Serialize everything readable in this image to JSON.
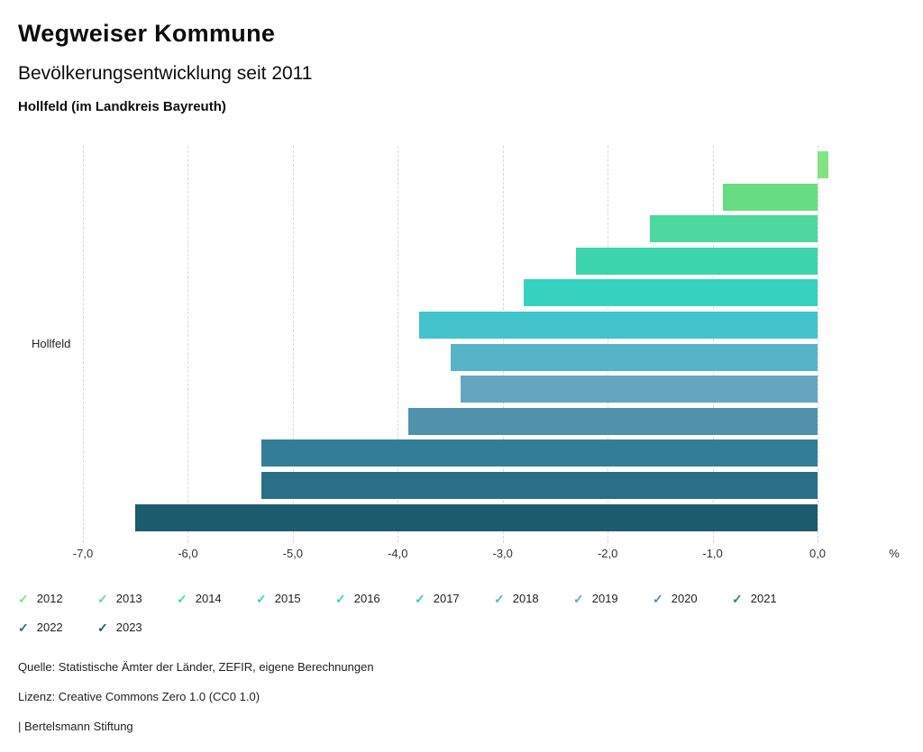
{
  "header": {
    "title": "Wegweiser Kommune",
    "subtitle": "Bevölkerungsentwicklung seit 2011",
    "location": "Hollfeld (im Landkreis Bayreuth)"
  },
  "chart_data": {
    "type": "bar",
    "orientation": "horizontal",
    "title": "Bevölkerungsentwicklung seit 2011",
    "group_label": "Hollfeld",
    "xlabel": "%",
    "xlim": [
      -7.0,
      0.7
    ],
    "grid": "dashed-vertical",
    "legend_position": "bottom",
    "x_ticks": [
      "-7,0",
      "-6,0",
      "-5,0",
      "-4,0",
      "-3,0",
      "-2,0",
      "-1,0",
      "0,0"
    ],
    "x_tick_values": [
      -7,
      -6,
      -5,
      -4,
      -3,
      -2,
      -1,
      0
    ],
    "series": [
      {
        "name": "2012",
        "value": 0.1,
        "color": "#83e283"
      },
      {
        "name": "2013",
        "value": -0.9,
        "color": "#67dc82"
      },
      {
        "name": "2014",
        "value": -1.6,
        "color": "#4cd89e"
      },
      {
        "name": "2015",
        "value": -2.3,
        "color": "#3cd5ad"
      },
      {
        "name": "2016",
        "value": -2.8,
        "color": "#37d1c0"
      },
      {
        "name": "2017",
        "value": -3.8,
        "color": "#43c3cb"
      },
      {
        "name": "2018",
        "value": -3.5,
        "color": "#57b3c7"
      },
      {
        "name": "2019",
        "value": -3.4,
        "color": "#64a6bf"
      },
      {
        "name": "2020",
        "value": -3.9,
        "color": "#5092ac"
      },
      {
        "name": "2021",
        "value": -5.3,
        "color": "#337e96"
      },
      {
        "name": "2022",
        "value": -5.3,
        "color": "#2b6e87"
      },
      {
        "name": "2023",
        "value": -6.5,
        "color": "#1d5b6e"
      }
    ]
  },
  "legend": {
    "check_glyph": "✓"
  },
  "footer": {
    "source": "Quelle: Statistische Ämter der Länder, ZEFIR, eigene Berechnungen",
    "license": "Lizenz: Creative Commons Zero 1.0 (CC0 1.0)",
    "attribution": "| Bertelsmann Stiftung"
  }
}
